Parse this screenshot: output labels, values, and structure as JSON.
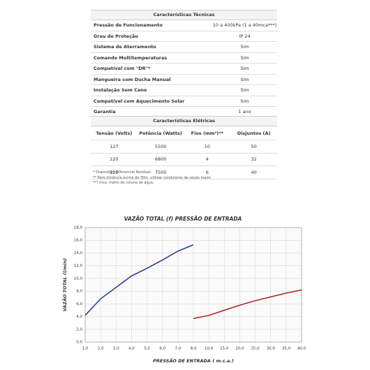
{
  "tables": {
    "technical": {
      "title": "Características Técnicas",
      "rows": [
        [
          "Pressão de Funcionamento",
          "10 a 400kPa (1 a 40mca***)"
        ],
        [
          "Grau de Proteção",
          "IP 24"
        ],
        [
          "Sistema de Aterramento",
          "Sim"
        ],
        [
          "Comando Multitemperaturas",
          "Sim"
        ],
        [
          "Compatível com \"DR\"*",
          "Sim"
        ],
        [
          "Mangueira com Ducha Manual",
          "Sim"
        ],
        [
          "Instalação Sem Cano",
          "Sim"
        ],
        [
          "Compatível com Aquecimento Solar",
          "Sim"
        ],
        [
          "Garantia",
          "1 ano"
        ]
      ]
    },
    "electrical": {
      "title": "Características Elétricas",
      "header": [
        "Tensão (Volts)",
        "Potência (Watts)",
        "Fios (mm²)**",
        "Disjuntos (A)"
      ],
      "rows": [
        [
          127,
          5500,
          10,
          50
        ],
        [
          220,
          6800,
          4,
          32
        ],
        [
          220,
          7500,
          6,
          40
        ]
      ]
    }
  },
  "notes": [
    "* Dispositivo Diferencial Residual.",
    "** Para distância acima de 30m, utilizar condutores de seção maior.",
    "*** mca: metro de coluna de água."
  ],
  "chart_data": {
    "type": "line",
    "title": "VAZÃO TOTAL (f) PRESSÃO DE ENTRADA",
    "x_label": "PRESSÃO DE ENTRADA ( m.c.a.)",
    "y_label": "VAZÃO TOTAL (l/min)",
    "categories": [
      "1,0",
      "2,0",
      "3,0",
      "4,0",
      "5,0",
      "6,0",
      "7,0",
      "8,0",
      "10,0",
      "15,0",
      "20,0",
      "25,0",
      "30,0",
      "35,0",
      "40,0"
    ],
    "series": [
      {
        "color": "#2e3d92",
        "values": [
          4.2,
          6.8,
          8.6,
          10.4,
          11.6,
          12.9,
          14.3,
          15.3,
          null,
          null,
          null,
          null,
          null,
          null,
          null
        ]
      },
      {
        "color": "#b02a2a",
        "values": [
          null,
          null,
          null,
          null,
          null,
          null,
          null,
          3.7,
          4.2,
          5.0,
          5.8,
          6.5,
          7.1,
          7.7,
          8.2
        ]
      }
    ],
    "ylim": [
      0,
      18
    ],
    "yticks": [
      {
        "value": 0,
        "label": "0,0"
      },
      {
        "value": 2,
        "label": "2,0"
      },
      {
        "value": 4,
        "label": "4,0"
      },
      {
        "value": 6,
        "label": "6,0"
      },
      {
        "value": 8,
        "label": "8,0"
      },
      {
        "value": 10,
        "label": "10,0"
      },
      {
        "value": 12,
        "label": "12,0"
      },
      {
        "value": 14,
        "label": "14,0"
      },
      {
        "value": 16,
        "label": "16,0"
      },
      {
        "value": 18,
        "label": "18,0"
      }
    ],
    "grid": true
  }
}
